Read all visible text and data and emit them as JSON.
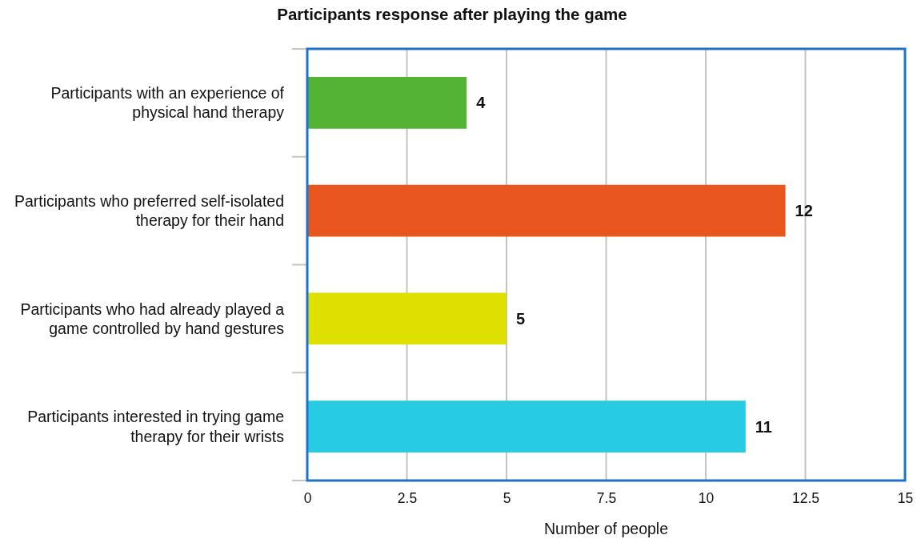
{
  "chart_data": {
    "type": "bar",
    "orientation": "horizontal",
    "title": "Participants response after playing the game",
    "xlabel": "Number of people",
    "categories": [
      "Participants with an experience of physical hand therapy",
      "Participants who preferred self-isolated therapy for their hand",
      "Participants who had already played a game controlled by hand gestures",
      "Participants interested in trying game therapy for their wrists"
    ],
    "values": [
      4,
      12,
      5,
      11
    ],
    "colors": [
      "#52b335",
      "#e8561e",
      "#dde000",
      "#27cce4"
    ],
    "xlim": [
      0,
      15
    ],
    "xticks": [
      0,
      2.5,
      5,
      7.5,
      10,
      12.5,
      15
    ],
    "grid": "x",
    "data_labels": true
  }
}
